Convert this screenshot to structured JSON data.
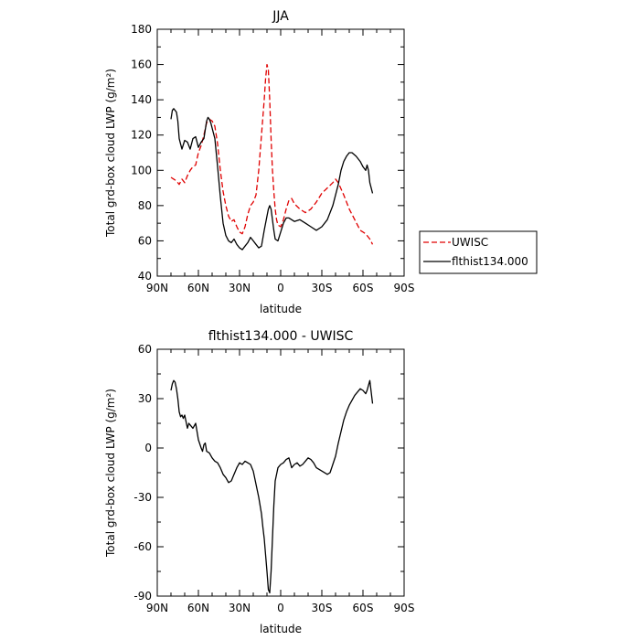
{
  "chart_data": [
    {
      "type": "line",
      "title": "JJA",
      "xlabel": "latitude",
      "ylabel": "Total grd-box cloud LWP (g/m²)",
      "xlim": [
        90,
        -90
      ],
      "ylim": [
        40,
        180
      ],
      "xticks": [
        {
          "value": 90,
          "label": "90N"
        },
        {
          "value": 60,
          "label": "60N"
        },
        {
          "value": 30,
          "label": "30N"
        },
        {
          "value": 0,
          "label": "0"
        },
        {
          "value": -30,
          "label": "30S"
        },
        {
          "value": -60,
          "label": "60S"
        },
        {
          "value": -90,
          "label": "90S"
        }
      ],
      "yticks": [
        40,
        60,
        80,
        100,
        120,
        140,
        160,
        180
      ],
      "legend_position": "right",
      "series": [
        {
          "name": "UWISC",
          "color": "#e00000",
          "dash": "dashed",
          "x": [
            80,
            78,
            76,
            74,
            72,
            70,
            68,
            66,
            64,
            62,
            60,
            58,
            56,
            54,
            52,
            50,
            48,
            46,
            44,
            42,
            40,
            38,
            36,
            34,
            32,
            30,
            28,
            26,
            24,
            22,
            20,
            18,
            16,
            14,
            12,
            11,
            10,
            9,
            8,
            7,
            6,
            5,
            4,
            3,
            2,
            0,
            -2,
            -4,
            -6,
            -8,
            -10,
            -14,
            -18,
            -22,
            -26,
            -30,
            -34,
            -38,
            -40,
            -42,
            -46,
            -50,
            -54,
            -58,
            -62,
            -65,
            -67
          ],
          "y": [
            96,
            95,
            94,
            92,
            95,
            93,
            97,
            100,
            102,
            103,
            110,
            114,
            120,
            127,
            129,
            128,
            125,
            115,
            100,
            88,
            80,
            74,
            71,
            72,
            68,
            65,
            64,
            68,
            75,
            80,
            82,
            86,
            100,
            120,
            140,
            152,
            160,
            157,
            140,
            118,
            100,
            88,
            78,
            72,
            69,
            68,
            72,
            78,
            83,
            84,
            81,
            78,
            76,
            78,
            82,
            87,
            90,
            93,
            95,
            93,
            86,
            78,
            72,
            66,
            64,
            61,
            58
          ]
        },
        {
          "name": "flthist134.000",
          "color": "#000000",
          "dash": "solid",
          "x": [
            80,
            79,
            78,
            76,
            75,
            74,
            73,
            72,
            70,
            68,
            66,
            64,
            62,
            60,
            58,
            56,
            54,
            53,
            52,
            51,
            50,
            48,
            46,
            44,
            42,
            40,
            38,
            36,
            34,
            32,
            30,
            28,
            26,
            24,
            22,
            20,
            18,
            16,
            14,
            12,
            10,
            9,
            8,
            7,
            6,
            5,
            4,
            2,
            0,
            -2,
            -4,
            -6,
            -8,
            -10,
            -14,
            -18,
            -22,
            -26,
            -30,
            -34,
            -38,
            -42,
            -44,
            -46,
            -48,
            -50,
            -52,
            -55,
            -58,
            -60,
            -62,
            -63,
            -64,
            -65,
            -67
          ],
          "y": [
            129,
            134,
            135,
            133,
            128,
            118,
            115,
            112,
            117,
            116,
            112,
            118,
            119,
            113,
            116,
            118,
            128,
            130,
            129,
            127,
            124,
            118,
            102,
            85,
            70,
            63,
            60,
            59,
            61,
            58,
            56,
            55,
            57,
            59,
            62,
            60,
            58,
            56,
            57,
            66,
            74,
            78,
            80,
            78,
            72,
            66,
            61,
            60,
            65,
            70,
            73,
            73,
            72,
            71,
            72,
            70,
            68,
            66,
            68,
            72,
            80,
            92,
            100,
            105,
            108,
            110,
            110,
            108,
            105,
            102,
            100,
            103,
            100,
            93,
            87
          ]
        }
      ]
    },
    {
      "type": "line",
      "title": "flthist134.000 - UWISC",
      "xlabel": "latitude",
      "ylabel": "Total grd-box cloud LWP (g/m²)",
      "xlim": [
        90,
        -90
      ],
      "ylim": [
        -90,
        60
      ],
      "xticks": [
        {
          "value": 90,
          "label": "90N"
        },
        {
          "value": 60,
          "label": "60N"
        },
        {
          "value": 30,
          "label": "30N"
        },
        {
          "value": 0,
          "label": "0"
        },
        {
          "value": -30,
          "label": "30S"
        },
        {
          "value": -60,
          "label": "60S"
        },
        {
          "value": -90,
          "label": "90S"
        }
      ],
      "yticks": [
        -90,
        -60,
        -30,
        0,
        30,
        60
      ],
      "series": [
        {
          "name": "",
          "color": "#000000",
          "dash": "solid",
          "x": [
            80,
            79,
            78,
            77,
            76,
            75,
            74,
            73,
            72,
            71,
            70,
            68,
            67,
            66,
            64,
            62,
            60,
            58,
            57,
            56,
            55,
            54,
            52,
            50,
            48,
            46,
            44,
            42,
            40,
            38,
            36,
            34,
            33,
            32,
            30,
            28,
            26,
            24,
            22,
            20,
            18,
            16,
            14,
            13,
            12,
            11,
            10,
            9,
            8,
            7,
            6,
            5,
            4,
            2,
            0,
            -2,
            -4,
            -6,
            -8,
            -10,
            -12,
            -14,
            -16,
            -18,
            -20,
            -22,
            -24,
            -26,
            -30,
            -34,
            -36,
            -38,
            -40,
            -42,
            -44,
            -46,
            -48,
            -50,
            -52,
            -54,
            -56,
            -58,
            -60,
            -62,
            -63,
            -64,
            -65,
            -67
          ],
          "y": [
            35,
            39,
            41,
            40,
            36,
            30,
            22,
            19,
            20,
            18,
            20,
            12,
            15,
            14,
            12,
            15,
            5,
            0,
            -2,
            2,
            3,
            -2,
            -3,
            -6,
            -8,
            -9,
            -12,
            -16,
            -18,
            -21,
            -20,
            -16,
            -14,
            -12,
            -9,
            -10,
            -8,
            -9,
            -10,
            -14,
            -22,
            -30,
            -40,
            -48,
            -55,
            -65,
            -75,
            -86,
            -88,
            -75,
            -55,
            -35,
            -20,
            -12,
            -10,
            -9,
            -7,
            -6,
            -12,
            -10,
            -9,
            -11,
            -10,
            -8,
            -6,
            -7,
            -9,
            -12,
            -14,
            -16,
            -15,
            -10,
            -5,
            3,
            10,
            17,
            22,
            26,
            29,
            32,
            34,
            36,
            35,
            33,
            35,
            38,
            41,
            27
          ]
        }
      ]
    }
  ],
  "legend": {
    "items": [
      {
        "label": "UWISC",
        "color": "#e00000",
        "dash": "dashed"
      },
      {
        "label": "flthist134.000",
        "color": "#000000",
        "dash": "solid"
      }
    ]
  }
}
